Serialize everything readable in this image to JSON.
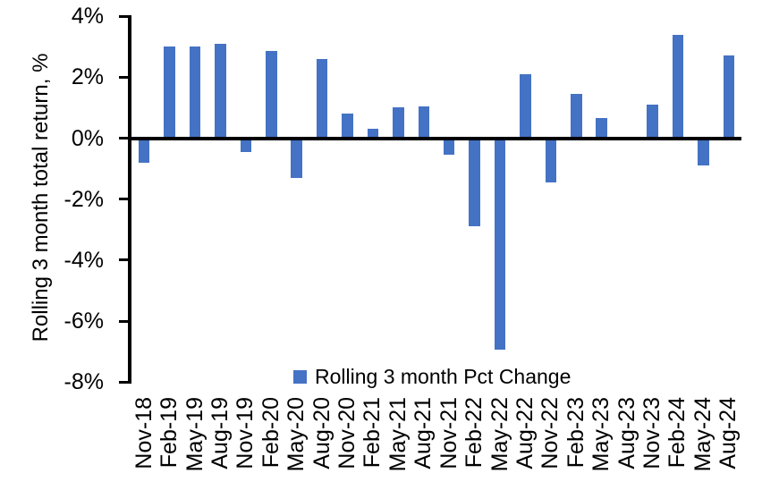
{
  "colors": {
    "bar_blue": "#4472C4",
    "axis_black": "#000000",
    "background": "#FFFFFF"
  },
  "chart_data": {
    "type": "bar",
    "title": "",
    "xlabel": "",
    "ylabel": "Rolling 3 month total return, %",
    "ylim": [
      -8,
      4
    ],
    "grid": false,
    "bar_color": "#4472C4",
    "legend_label": "Rolling 3 month Pct Change",
    "legend_position": "bottom-center-inside",
    "y_ticks": [
      4,
      2,
      0,
      -2,
      -4,
      -6,
      -8
    ],
    "y_tick_labels": [
      "4%",
      "2%",
      "0%",
      "-2%",
      "-4%",
      "-6%",
      "-8%"
    ],
    "categories": [
      "Nov-18",
      "Feb-19",
      "May-19",
      "Aug-19",
      "Nov-19",
      "Feb-20",
      "May-20",
      "Aug-20",
      "Nov-20",
      "Feb-21",
      "May-21",
      "Aug-21",
      "Nov-21",
      "Feb-22",
      "May-22",
      "Aug-22",
      "Nov-22",
      "Feb-23",
      "May-23",
      "Aug-23",
      "Nov-23",
      "Feb-24",
      "May-24",
      "Aug-24"
    ],
    "values": [
      -0.8,
      3.0,
      3.0,
      3.1,
      -0.45,
      2.85,
      -1.3,
      2.6,
      0.8,
      0.3,
      1.0,
      1.05,
      -0.55,
      -2.9,
      -6.95,
      2.1,
      -1.45,
      1.45,
      0.65,
      0.0,
      1.1,
      3.4,
      -0.9,
      2.7
    ]
  }
}
